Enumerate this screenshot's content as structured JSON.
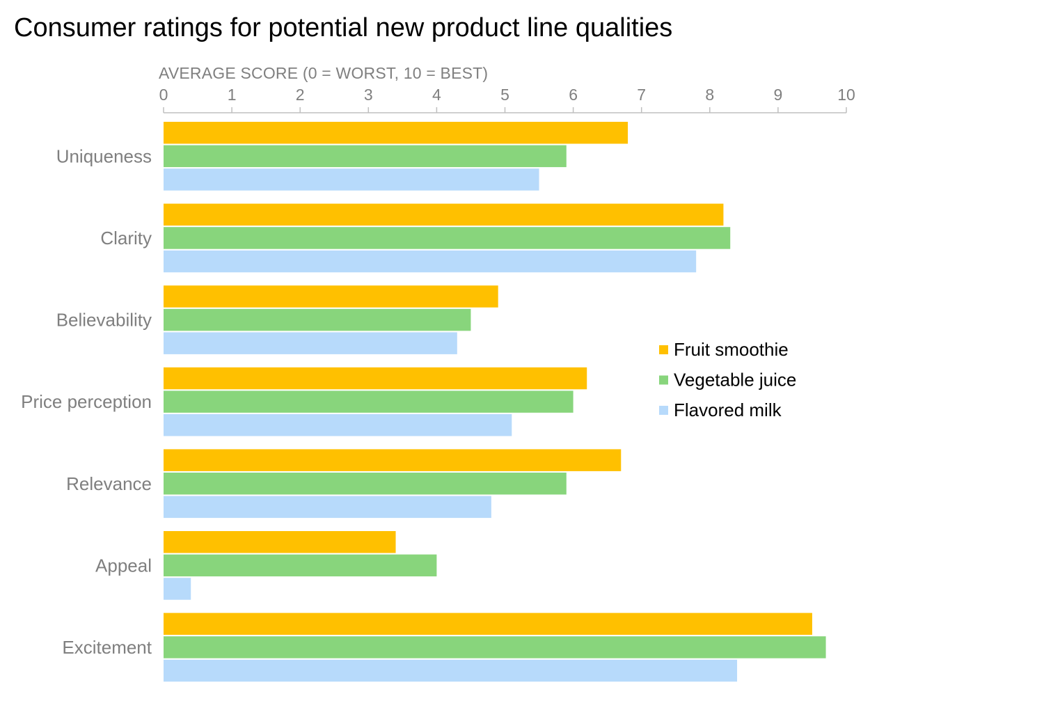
{
  "chart_data": {
    "type": "bar",
    "orientation": "horizontal",
    "title": "Consumer ratings for potential new product line qualities",
    "xlabel": "AVERAGE SCORE (0 = WORST, 10 = BEST)",
    "ylabel": "",
    "xlim": [
      0,
      10
    ],
    "xticks": [
      "0",
      "1",
      "2",
      "3",
      "4",
      "5",
      "6",
      "7",
      "8",
      "9",
      "10"
    ],
    "grid": false,
    "legend_position": "right",
    "categories": [
      "Uniqueness",
      "Clarity",
      "Believability",
      "Price perception",
      "Relevance",
      "Appeal",
      "Excitement"
    ],
    "series": [
      {
        "name": "Fruit smoothie",
        "color": "#FFC000",
        "values": [
          6.8,
          8.2,
          4.9,
          6.2,
          6.7,
          3.4,
          9.5
        ]
      },
      {
        "name": "Vegetable juice",
        "color": "#88D57C",
        "values": [
          5.9,
          8.3,
          4.5,
          6.0,
          5.9,
          4.0,
          9.7
        ]
      },
      {
        "name": "Flavored milk",
        "color": "#B7DAFB",
        "values": [
          5.5,
          7.8,
          4.3,
          5.1,
          4.8,
          0.4,
          8.4
        ]
      }
    ]
  }
}
